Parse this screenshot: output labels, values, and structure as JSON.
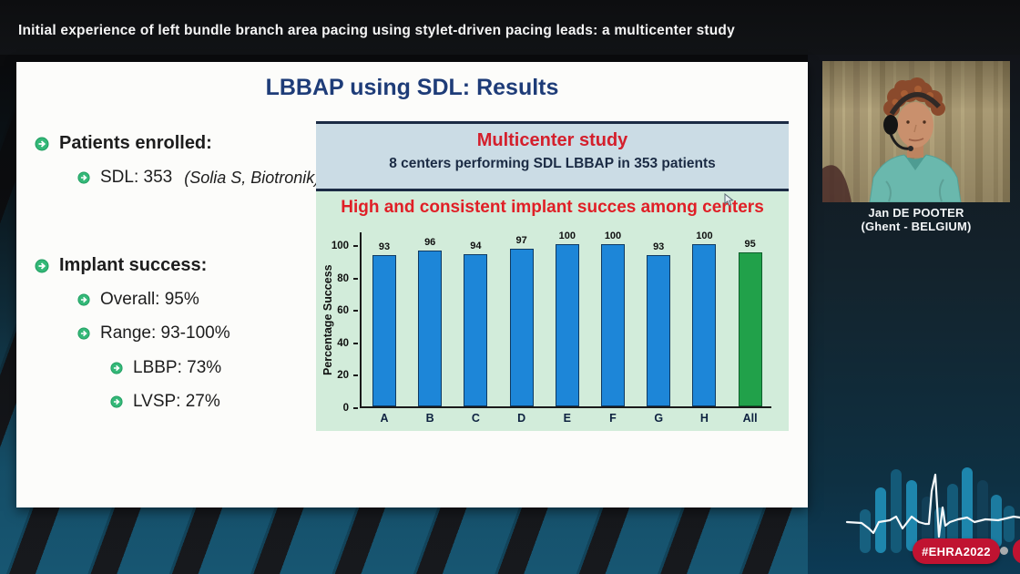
{
  "header": {
    "title": "Initial experience of left bundle branch area pacing using stylet-driven pacing leads: a multicenter study"
  },
  "slide": {
    "title": "LBBAP using SDL: Results",
    "bullets": [
      {
        "text": "Patients enrolled:"
      },
      {
        "text": "SDL:  353",
        "note": "(Solia S, Biotronik)"
      },
      {
        "text": "Implant success:"
      },
      {
        "text": "Overall: 95%"
      },
      {
        "text": "Range: 93-100%"
      },
      {
        "text": "LBBP: 73%"
      },
      {
        "text": "LVSP: 27%"
      }
    ],
    "panel": {
      "title": "Multicenter study",
      "subtitle": "8 centers performing SDL LBBAP in 353 patients"
    }
  },
  "chart_data": {
    "type": "bar",
    "title": "High and consistent implant succes among centers",
    "categories": [
      "A",
      "B",
      "C",
      "D",
      "E",
      "F",
      "G",
      "H",
      "All"
    ],
    "values": [
      93,
      96,
      94,
      97,
      100,
      100,
      93,
      100,
      95
    ],
    "xlabel": "",
    "ylabel": "Percentage Success",
    "yticks": [
      0,
      20,
      40,
      60,
      80,
      100
    ],
    "ylim": [
      0,
      100
    ],
    "grid": false,
    "legend": "none",
    "bar_color": "#1d86d8",
    "highlight_color": "#21a14a",
    "highlight_index": 8
  },
  "speaker": {
    "name": "Jan DE POOTER",
    "location": "(Ghent - BELGIUM)"
  },
  "footer": {
    "hashtag": "#EHRA2022"
  },
  "colors": {
    "accent_red": "#c01331",
    "chart_title_red": "#e01f26",
    "panel_red": "#d41f2c",
    "navy_text": "#1b2b44",
    "slide_title_blue": "#1e3c78",
    "bullet_green": "#2eb573",
    "info_box_bg": "#cbdce5",
    "chart_bg": "#d2ecda",
    "stripe_teal": "#175672"
  }
}
